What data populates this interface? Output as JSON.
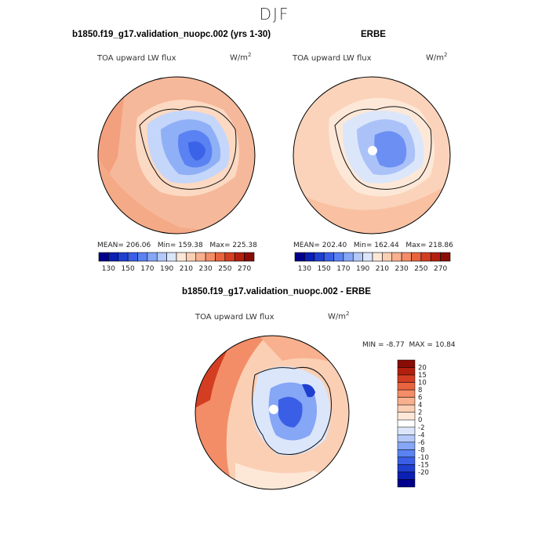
{
  "season": "DJF",
  "panels": {
    "model": {
      "title": "b1850.f19_g17.validation_nuopc.002 (yrs 1-30)",
      "variable": "TOA upward LW flux",
      "units_base": "W/m",
      "units_exp": "2",
      "stats": {
        "mean_label": "MEAN=",
        "mean": "206.06",
        "min_label": "Min=",
        "min": "159.38",
        "max_label": "Max=",
        "max": "225.38"
      }
    },
    "obs": {
      "title": "ERBE",
      "variable": "TOA upward LW flux",
      "units_base": "W/m",
      "units_exp": "2",
      "stats": {
        "mean_label": "MEAN=",
        "mean": "202.40",
        "min_label": "Min=",
        "min": "162.44",
        "max_label": "Max=",
        "max": "218.86"
      }
    },
    "diff": {
      "title": "b1850.f19_g17.validation_nuopc.002 - ERBE",
      "variable": "TOA upward LW flux",
      "units_base": "W/m",
      "units_exp": "2",
      "stats": {
        "min_label": "MIN =",
        "min": "-8.77",
        "max_label": "MAX =",
        "max": "10.84"
      }
    }
  },
  "chart_data": [
    {
      "type": "heatmap",
      "projection": "south polar stereographic",
      "title": "b1850.f19_g17.validation_nuopc.002 (yrs 1-30)",
      "variable": "TOA upward LW flux",
      "units": "W/m2",
      "mean": 206.06,
      "min": 159.38,
      "max": 225.38,
      "colorbar": {
        "orientation": "horizontal",
        "levels": [
          130,
          140,
          150,
          160,
          170,
          180,
          190,
          200,
          210,
          220,
          230,
          240,
          250,
          260,
          270
        ],
        "tick_labels": [
          "130",
          "150",
          "170",
          "190",
          "210",
          "230",
          "250",
          "270"
        ],
        "colors": [
          "#00008c",
          "#0a1fb4",
          "#1f3fd0",
          "#3a5fe6",
          "#5b82f2",
          "#86a6f6",
          "#b4c9f8",
          "#dbe6fb",
          "#fde8d8",
          "#fbcfb4",
          "#f8b08e",
          "#f38d67",
          "#e8643f",
          "#d33e22",
          "#b21f0e",
          "#8a0c06"
        ]
      }
    },
    {
      "type": "heatmap",
      "projection": "south polar stereographic",
      "title": "ERBE",
      "variable": "TOA upward LW flux",
      "units": "W/m2",
      "mean": 202.4,
      "min": 162.44,
      "max": 218.86,
      "colorbar": {
        "orientation": "horizontal",
        "levels": [
          130,
          140,
          150,
          160,
          170,
          180,
          190,
          200,
          210,
          220,
          230,
          240,
          250,
          260,
          270
        ],
        "tick_labels": [
          "130",
          "150",
          "170",
          "190",
          "210",
          "230",
          "250",
          "270"
        ],
        "colors": [
          "#00008c",
          "#0a1fb4",
          "#1f3fd0",
          "#3a5fe6",
          "#5b82f2",
          "#86a6f6",
          "#b4c9f8",
          "#dbe6fb",
          "#fde8d8",
          "#fbcfb4",
          "#f8b08e",
          "#f38d67",
          "#e8643f",
          "#d33e22",
          "#b21f0e",
          "#8a0c06"
        ]
      }
    },
    {
      "type": "heatmap",
      "projection": "south polar stereographic",
      "title": "b1850.f19_g17.validation_nuopc.002 - ERBE",
      "variable": "TOA upward LW flux",
      "units": "W/m2",
      "min": -8.77,
      "max": 10.84,
      "colorbar": {
        "orientation": "vertical",
        "tick_labels": [
          "20",
          "15",
          "10",
          "8",
          "6",
          "4",
          "2",
          "0",
          "-2",
          "-4",
          "-6",
          "-8",
          "-10",
          "-15",
          "-20"
        ],
        "colors": [
          "#8a0c06",
          "#b21f0e",
          "#d33e22",
          "#e8643f",
          "#f38d67",
          "#f8b08e",
          "#fbcfb4",
          "#fde8d8",
          "#ffffff",
          "#dbe6fb",
          "#b4c9f8",
          "#86a6f6",
          "#5b82f2",
          "#3a5fe6",
          "#1f3fd0",
          "#0a1fb4",
          "#00008c"
        ]
      }
    }
  ]
}
